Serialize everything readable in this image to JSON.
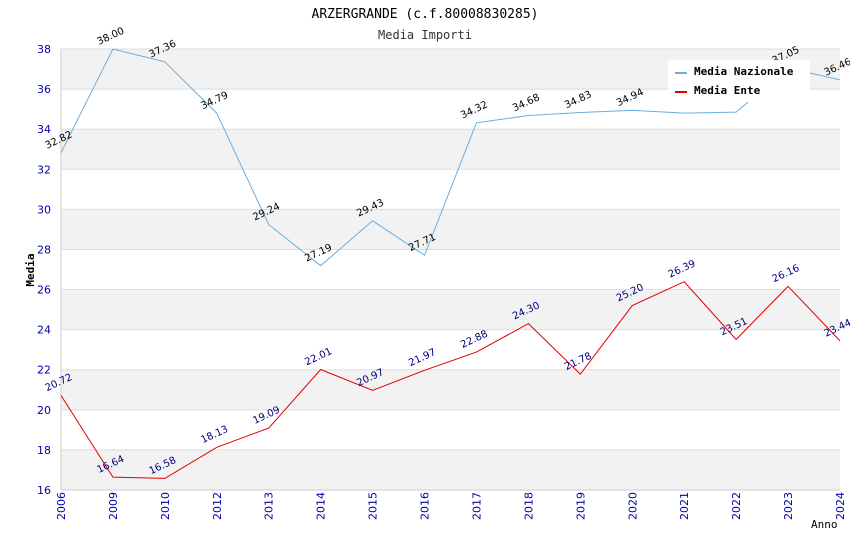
{
  "chart_data": {
    "type": "line",
    "title": "ARZERGRANDE (c.f.80008830285)",
    "subtitle": "Media Importi",
    "xlabel": "Anno",
    "ylabel": "Media",
    "ylim": [
      16,
      38
    ],
    "yticks": [
      16,
      18,
      20,
      22,
      24,
      26,
      28,
      30,
      32,
      34,
      36,
      38
    ],
    "categories": [
      "2006",
      "2009",
      "2010",
      "2012",
      "2013",
      "2014",
      "2015",
      "2016",
      "2017",
      "2018",
      "2019",
      "2020",
      "2021",
      "2022",
      "2023",
      "2024"
    ],
    "legend_position": "top-right",
    "series": [
      {
        "name": "Media Nazionale",
        "color": "#6aaee0",
        "values": [
          32.82,
          38.0,
          37.36,
          34.79,
          29.24,
          27.19,
          29.43,
          27.71,
          34.32,
          34.68,
          34.83,
          34.94,
          34.8,
          34.85,
          37.05,
          36.46
        ],
        "labels": [
          "32.82",
          "38.00",
          "37.36",
          "34.79",
          "29.24",
          "27.19",
          "29.43",
          "27.71",
          "34.32",
          "34.68",
          "34.83",
          "34.94",
          "",
          "",
          "37.05",
          "36.46"
        ]
      },
      {
        "name": "Media Ente",
        "color": "#e00000",
        "values": [
          20.72,
          16.64,
          16.58,
          18.13,
          19.09,
          22.01,
          20.97,
          21.97,
          22.88,
          24.3,
          21.78,
          25.2,
          26.39,
          23.51,
          26.16,
          23.44
        ],
        "labels": [
          "20.72",
          "16.64",
          "16.58",
          "18.13",
          "19.09",
          "22.01",
          "20.97",
          "21.97",
          "22.88",
          "24.30",
          "21.78",
          "25.20",
          "26.39",
          "23.51",
          "26.16",
          "23.44"
        ]
      }
    ]
  }
}
